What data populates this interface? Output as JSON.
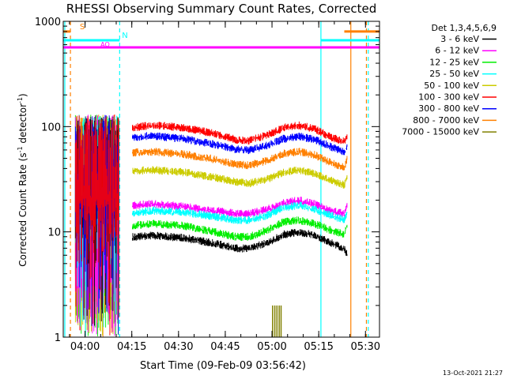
{
  "chart_data": {
    "type": "line",
    "title": "RHESSI Observing Summary Count Rates, Corrected",
    "xlabel": "Start Time (09-Feb-09 03:56:42)",
    "ylabel": "Corrected Count Rate (s",
    "ylabel_sup1": "-1",
    "ylabel_mid": " detector",
    "ylabel_sup2": "-1",
    "ylabel_end": ")",
    "date_stamp": "13-Oct-2021 21:27",
    "x_unit": "minutes after 03:56:42",
    "xlim": [
      -3.7,
      97.8
    ],
    "ylim": [
      1,
      1000
    ],
    "yscale": "log",
    "x_ticks": [
      {
        "label": "04:00",
        "value": 3.3
      },
      {
        "label": "04:15",
        "value": 18.3
      },
      {
        "label": "04:30",
        "value": 33.3
      },
      {
        "label": "04:45",
        "value": 48.3
      },
      {
        "label": "05:00",
        "value": 63.3
      },
      {
        "label": "05:15",
        "value": 78.3
      },
      {
        "label": "05:30",
        "value": 93.3
      }
    ],
    "y_ticks": [
      {
        "label": "1",
        "value": 1
      },
      {
        "label": "10",
        "value": 10
      },
      {
        "label": "100",
        "value": 100
      },
      {
        "label": "1000",
        "value": 1000
      }
    ],
    "legend": {
      "position": "right",
      "title": "Det 1,3,4,5,6,9",
      "entries": [
        {
          "label": "3 - 6 keV",
          "color": "#000000"
        },
        {
          "label": "6 - 12 keV",
          "color": "#ff00ff"
        },
        {
          "label": "12 - 25 keV",
          "color": "#00ee00"
        },
        {
          "label": "25 - 50 keV",
          "color": "#00ffff"
        },
        {
          "label": "50 - 100 keV",
          "color": "#cccc00"
        },
        {
          "label": "100 - 300 keV",
          "color": "#ff0000"
        },
        {
          "label": "300 - 800 keV",
          "color": "#0000ff"
        },
        {
          "label": "800 - 7000 keV",
          "color": "#ff8000"
        },
        {
          "label": "7000 - 15000 keV",
          "color": "#808000"
        }
      ]
    },
    "series": [
      {
        "color": "#ff0000",
        "x": [
          18.5,
          25,
          35,
          45,
          52,
          56,
          62,
          67,
          72,
          77,
          82,
          86.5,
          87.5
        ],
        "y": [
          98,
          104,
          98,
          86,
          75,
          74,
          84,
          98,
          103,
          96,
          80,
          72,
          84
        ]
      },
      {
        "color": "#0000ff",
        "x": [
          18.5,
          25,
          35,
          45,
          52,
          56,
          62,
          67,
          72,
          77,
          82,
          86.5,
          87.5
        ],
        "y": [
          80,
          82,
          77,
          68,
          61,
          60,
          67,
          77,
          81,
          76,
          65,
          58,
          68
        ]
      },
      {
        "color": "#ff8000",
        "x": [
          18.5,
          25,
          35,
          45,
          52,
          56,
          62,
          67,
          72,
          77,
          82,
          86.5,
          87.5
        ],
        "y": [
          57,
          58,
          55,
          49,
          44,
          43,
          48,
          56,
          58,
          54,
          46,
          41,
          50
        ]
      },
      {
        "color": "#cccc00",
        "x": [
          18.5,
          25,
          35,
          45,
          52,
          56,
          62,
          67,
          72,
          77,
          82,
          86.5,
          87.5
        ],
        "y": [
          38,
          39,
          37,
          33,
          30,
          29,
          32,
          37,
          39,
          36,
          31,
          28,
          34
        ]
      },
      {
        "color": "#ff00ff",
        "x": [
          18.5,
          25,
          35,
          45,
          52,
          56,
          62,
          67,
          72,
          77,
          82,
          86.5,
          87.5
        ],
        "y": [
          18,
          18.5,
          17.5,
          16,
          15,
          15,
          16.5,
          19,
          20,
          18.5,
          16,
          15,
          19
        ]
      },
      {
        "color": "#00ffff",
        "x": [
          18.5,
          25,
          35,
          45,
          52,
          56,
          62,
          67,
          72,
          77,
          82,
          86.5,
          87.5
        ],
        "y": [
          15,
          16,
          15.5,
          14,
          13,
          13,
          14.5,
          17,
          18,
          16.5,
          14.5,
          13,
          16
        ]
      },
      {
        "color": "#00ee00",
        "x": [
          18.5,
          25,
          35,
          45,
          52,
          56,
          62,
          67,
          72,
          77,
          82,
          86.5,
          87.5
        ],
        "y": [
          11.5,
          12,
          11.5,
          10,
          9,
          9,
          10.5,
          12.5,
          13,
          12,
          10.5,
          9.5,
          12
        ]
      },
      {
        "color": "#000000",
        "x": [
          18.5,
          25,
          35,
          45,
          52,
          56,
          62,
          67,
          72,
          77,
          82,
          86.5,
          87.5
        ],
        "y": [
          9,
          9.3,
          8.8,
          7.8,
          7,
          7,
          8,
          9.5,
          10,
          9.3,
          8,
          7,
          6
        ]
      }
    ],
    "state_flags": [
      {
        "label": "S",
        "color": "#ff8000",
        "y": 800,
        "segments": [
          [
            -3.7,
            -1.4
          ],
          [
            86.5,
            97.8
          ]
        ]
      },
      {
        "label": "N",
        "color": "#00ffff",
        "y": 660,
        "segments": [
          [
            -3.7,
            14.4
          ],
          [
            79.0,
            97.8
          ]
        ]
      },
      {
        "label": "AO",
        "color": "#ff00ff",
        "y": 565,
        "segments": [
          [
            -3.7,
            97.8
          ]
        ]
      }
    ],
    "state_lines": [
      {
        "color": "#ff8000",
        "x": -1.4,
        "style": "dashed"
      },
      {
        "color": "#00ffff",
        "x": 14.4,
        "style": "dashed"
      },
      {
        "color": "#00ffff",
        "x": -3.2,
        "style": "solid"
      },
      {
        "color": "#00ffff",
        "x": 79.0,
        "style": "solid"
      },
      {
        "color": "#ff8000",
        "x": 88.6,
        "style": "solid"
      },
      {
        "color": "#ff8000",
        "x": 93.6,
        "style": "dashed"
      },
      {
        "color": "#00ffff",
        "x": 94.2,
        "style": "dashed"
      }
    ]
  }
}
